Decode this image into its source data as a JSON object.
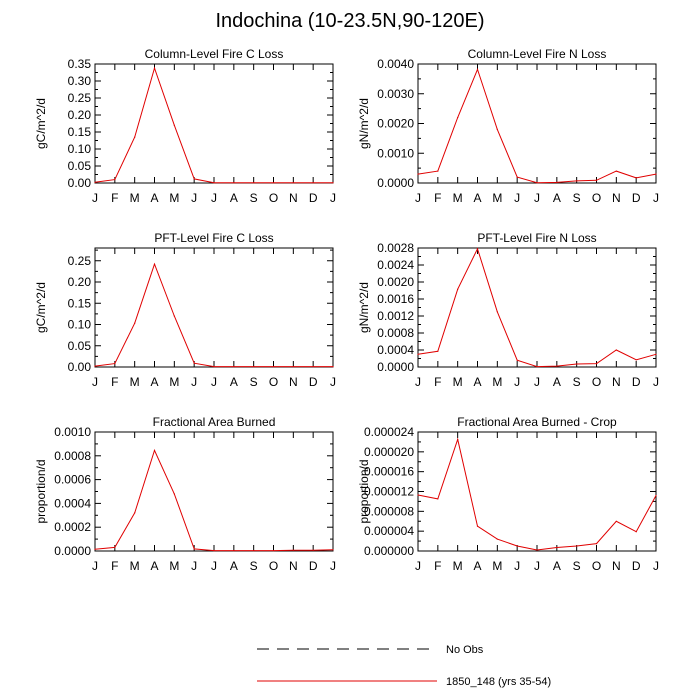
{
  "title": "Indochina (10-23.5N,90-120E)",
  "months": [
    "J",
    "F",
    "M",
    "A",
    "M",
    "J",
    "J",
    "A",
    "S",
    "O",
    "N",
    "D",
    "J"
  ],
  "legend": [
    {
      "label": "No Obs",
      "style": "dashed",
      "color": "#000000"
    },
    {
      "label": "1850_148 (yrs 35-54)",
      "style": "solid",
      "color": "#e00000"
    }
  ],
  "chart_data": [
    {
      "type": "line",
      "title": "Column-Level Fire C Loss",
      "ylabel": "gC/m^2/d",
      "ylim": [
        0,
        0.35
      ],
      "yticks": [
        "0.00",
        "0.05",
        "0.10",
        "0.15",
        "0.20",
        "0.25",
        "0.30",
        "0.35"
      ],
      "minor_per_major": 1,
      "series": [
        {
          "values": [
            0.002,
            0.01,
            0.135,
            0.338,
            0.17,
            0.012,
            0.001,
            0.001,
            0.001,
            0.001,
            0.001,
            0.001,
            0.001
          ]
        }
      ]
    },
    {
      "type": "line",
      "title": "Column-Level Fire N Loss",
      "ylabel": "gN/m^2/d",
      "ylim": [
        0,
        0.004
      ],
      "yticks": [
        "0.0000",
        "0.0010",
        "0.0020",
        "0.0030",
        "0.0040"
      ],
      "minor_per_major": 1,
      "series": [
        {
          "values": [
            0.0003,
            0.0004,
            0.0022,
            0.00382,
            0.0018,
            0.0002,
            1e-05,
            2e-05,
            7e-05,
            9e-05,
            0.0004,
            0.00017,
            0.0003
          ]
        }
      ]
    },
    {
      "type": "line",
      "title": "PFT-Level Fire C Loss",
      "ylabel": "gC/m^2/d",
      "ylim": [
        0,
        0.28
      ],
      "yticks": [
        "0.00",
        "0.05",
        "0.10",
        "0.15",
        "0.20",
        "0.25"
      ],
      "minor_per_major": 1,
      "series": [
        {
          "values": [
            0.002,
            0.008,
            0.103,
            0.242,
            0.12,
            0.009,
            0.001,
            0.001,
            0.001,
            0.001,
            0.001,
            0.001,
            0.001
          ]
        }
      ]
    },
    {
      "type": "line",
      "title": "PFT-Level Fire N Loss",
      "ylabel": "gN/m^2/d",
      "ylim": [
        0,
        0.0028
      ],
      "yticks": [
        "0.0000",
        "0.0004",
        "0.0008",
        "0.0012",
        "0.0016",
        "0.0020",
        "0.0024",
        "0.0028"
      ],
      "minor_per_major": 1,
      "series": [
        {
          "values": [
            0.0003,
            0.00037,
            0.00183,
            0.00278,
            0.0013,
            0.00016,
            1e-05,
            2e-05,
            7e-05,
            8e-05,
            0.0004,
            0.00017,
            0.0003
          ]
        }
      ]
    },
    {
      "type": "line",
      "title": "Fractional Area Burned",
      "ylabel": "proportion/d",
      "ylim": [
        0,
        0.001
      ],
      "yticks": [
        "0.0000",
        "0.0002",
        "0.0004",
        "0.0006",
        "0.0008",
        "0.0010"
      ],
      "minor_per_major": 1,
      "series": [
        {
          "values": [
            1.5e-05,
            3e-05,
            0.00032,
            0.000845,
            0.00048,
            1.8e-05,
            3e-06,
            3e-06,
            3e-06,
            3e-06,
            6e-06,
            6e-06,
            1e-05
          ]
        }
      ]
    },
    {
      "type": "line",
      "title": "Fractional Area Burned - Crop",
      "ylabel": "proportion/d",
      "ylim": [
        0,
        2.4e-05
      ],
      "yticks": [
        "0.000000",
        "0.000004",
        "0.000008",
        "0.000012",
        "0.000016",
        "0.000020",
        "0.000024"
      ],
      "minor_per_major": 1,
      "series": [
        {
          "values": [
            1.13e-05,
            1.05e-05,
            2.25e-05,
            5e-06,
            2.4e-06,
            1e-06,
            2e-07,
            7e-07,
            1e-06,
            1.5e-06,
            6e-06,
            3.9e-06,
            1.12e-05
          ]
        }
      ]
    }
  ]
}
